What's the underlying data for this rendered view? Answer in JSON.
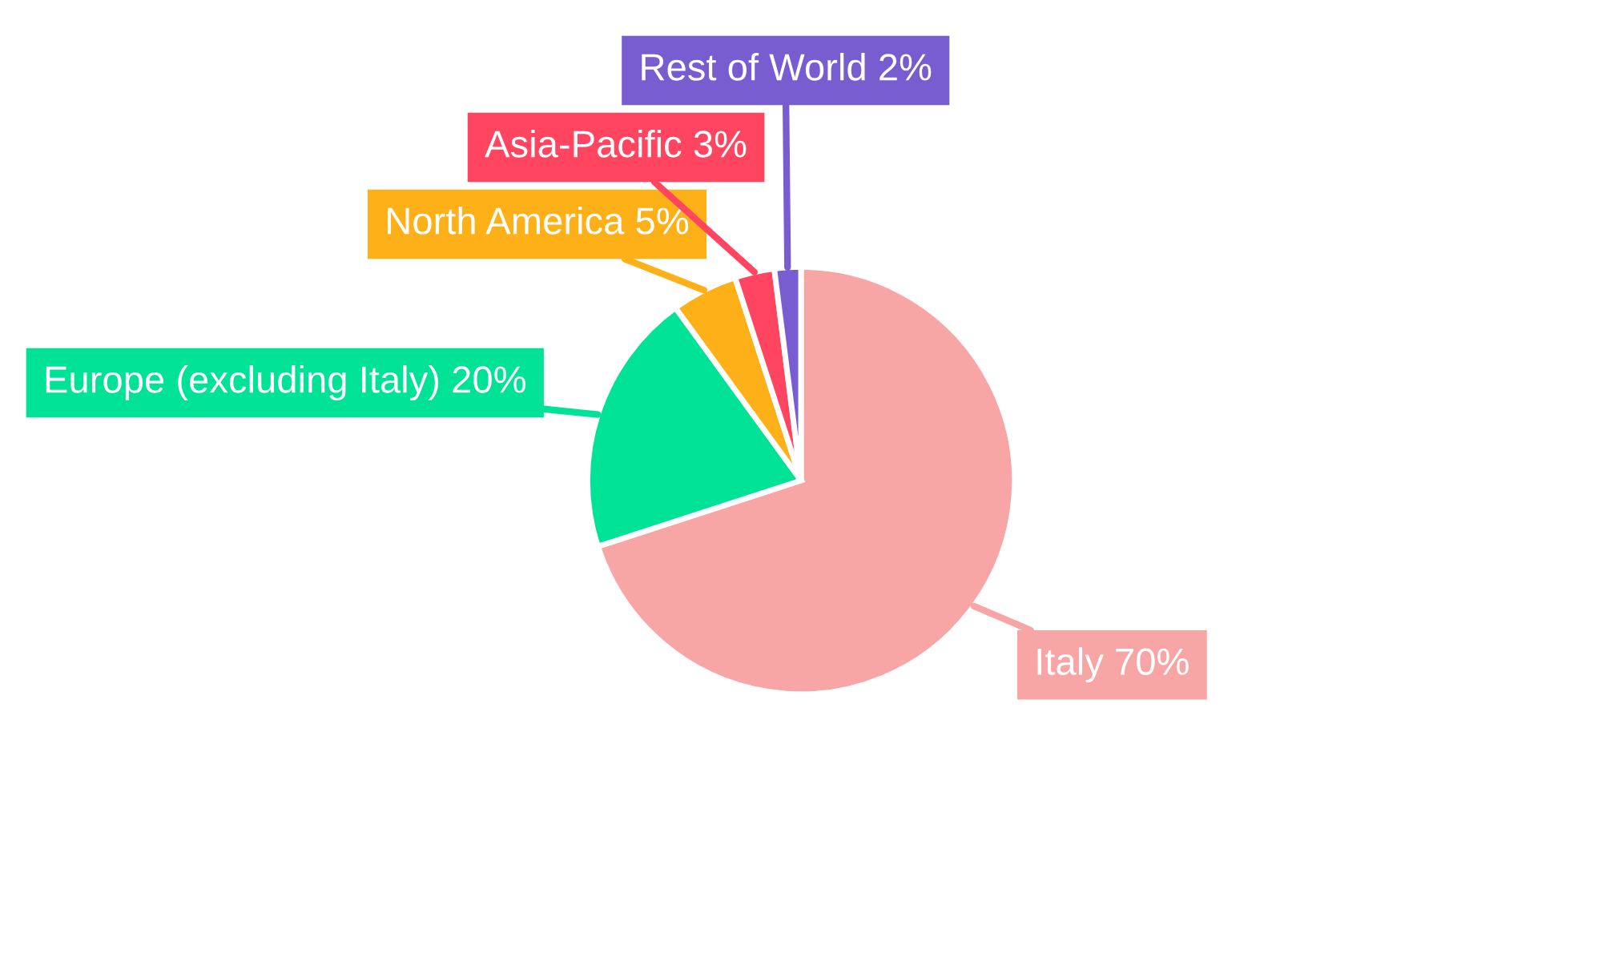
{
  "chart_data": {
    "type": "pie",
    "categories": [
      "Italy",
      "Europe (excluding Italy)",
      "North America",
      "Asia-Pacific",
      "Rest of World"
    ],
    "values": [
      70,
      20,
      5,
      3,
      2
    ],
    "value_labels": [
      "70%",
      "20%",
      "5%",
      "3%",
      "2%"
    ],
    "colors": [
      "#f8a5a6",
      "#00e396",
      "#feb019",
      "#ff4560",
      "#775dd0"
    ],
    "legend": false
  }
}
